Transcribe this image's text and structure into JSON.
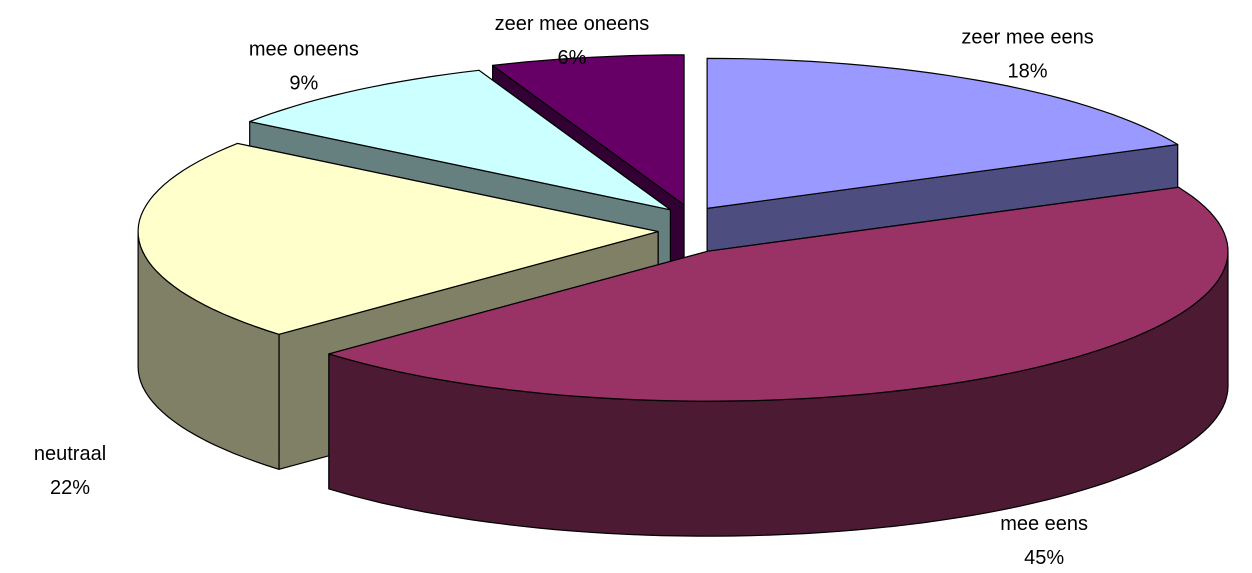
{
  "chart_data": {
    "type": "pie3d",
    "categories": [
      "zeer mee eens",
      "mee eens",
      "neutraal",
      "mee oneens",
      "zeer mee oneens"
    ],
    "values": [
      18,
      45,
      22,
      9,
      6
    ],
    "value_labels": [
      "18%",
      "45%",
      "22%",
      "9%",
      "6%"
    ],
    "colors": [
      "#9999ff",
      "#993366",
      "#ffffcc",
      "#ccffff",
      "#660066"
    ],
    "exploded": true
  }
}
